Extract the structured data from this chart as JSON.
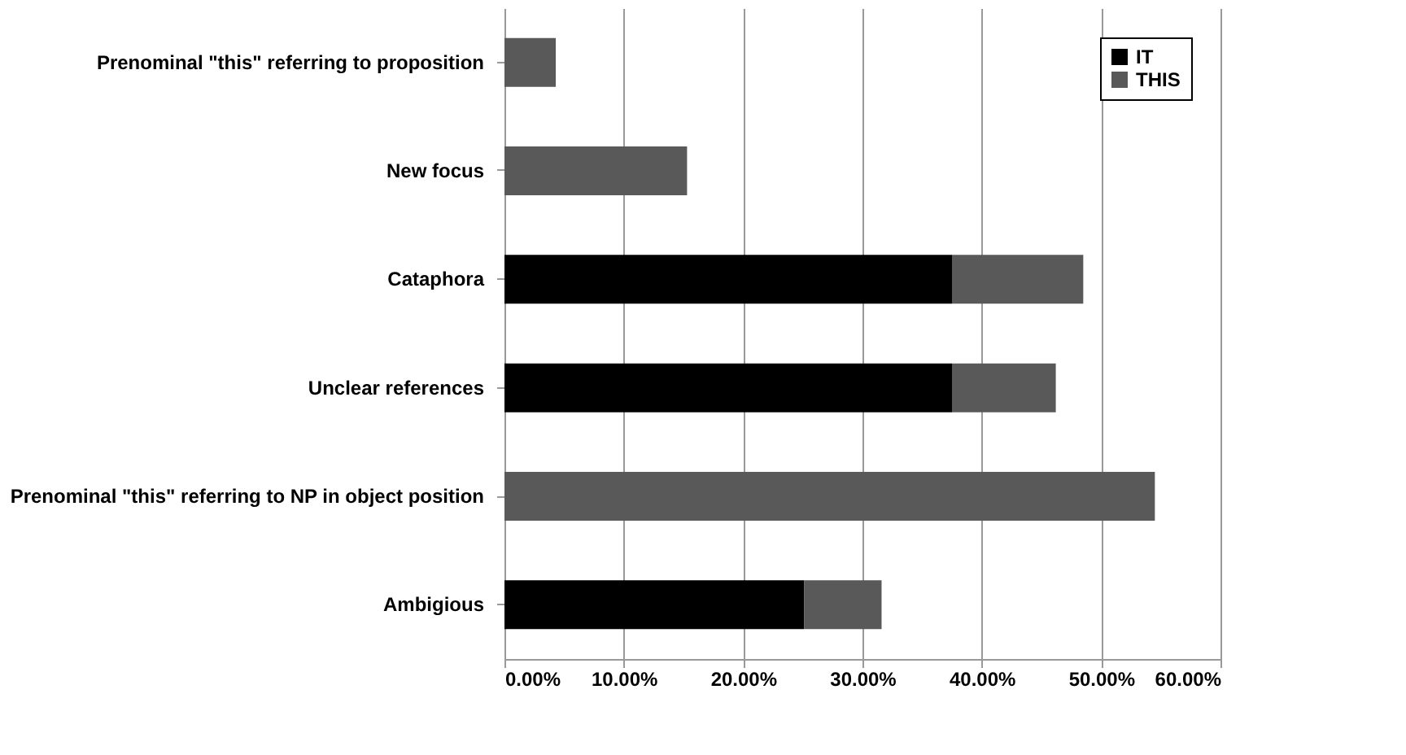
{
  "chart_data": {
    "type": "bar",
    "orientation": "horizontal",
    "stacked": true,
    "categories": [
      "Prenominal  \"this\" referring to proposition",
      "New focus",
      "Cataphora",
      "Unclear references",
      "Prenominal \"this\" referring to NP in object position",
      "Ambigious"
    ],
    "series": [
      {
        "name": "IT",
        "color": "#000000",
        "values": [
          0,
          0,
          37.5,
          37.5,
          0,
          25.1
        ]
      },
      {
        "name": "THIS",
        "color": "#595959",
        "values": [
          4.3,
          15.3,
          11.0,
          8.7,
          54.5,
          6.5
        ]
      }
    ],
    "xlim": [
      0,
      60
    ],
    "xticks": [
      {
        "value": 0,
        "label": "0.00%"
      },
      {
        "value": 10,
        "label": "10.00%"
      },
      {
        "value": 20,
        "label": "20.00%"
      },
      {
        "value": 30,
        "label": "30.00%"
      },
      {
        "value": 40,
        "label": "40.00%"
      },
      {
        "value": 50,
        "label": "50.00%"
      },
      {
        "value": 60,
        "label": "60.00%"
      }
    ],
    "grid": "x",
    "legend": "top right"
  }
}
